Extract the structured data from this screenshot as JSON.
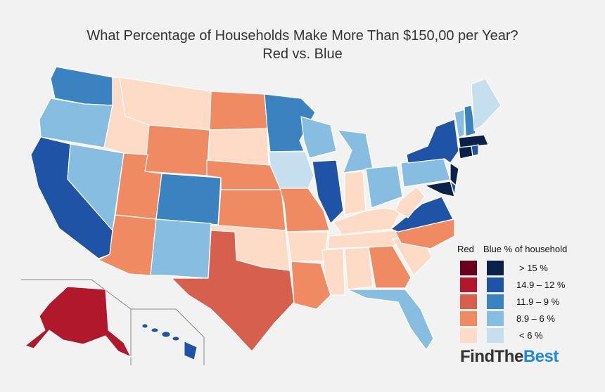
{
  "title_line1": "What Percentage of Households Make More Than $150,00 per Year?",
  "title_line2": "Red vs. Blue",
  "legend": {
    "red_header": "Red",
    "blue_header": "Blue % of household",
    "classes": [
      {
        "label": "> 15 %",
        "red": "#67001f",
        "blue": "#0b2149"
      },
      {
        "label": "14.9 – 12 %",
        "red": "#b2182b",
        "blue": "#1f53a6"
      },
      {
        "label": "11.9 – 9 %",
        "red": "#d6604d",
        "blue": "#3a82c0"
      },
      {
        "label": "8.9 – 6 %",
        "red": "#ef8a62",
        "blue": "#86bde0"
      },
      {
        "label": "< 6 %",
        "red": "#fddbc7",
        "blue": "#c6dfee"
      }
    ]
  },
  "brand": {
    "part1": "FindThe",
    "part2": "Best"
  },
  "colors": {
    "background": "#f2f2f2",
    "border": "#ffffff",
    "inset_line": "#888888"
  }
}
